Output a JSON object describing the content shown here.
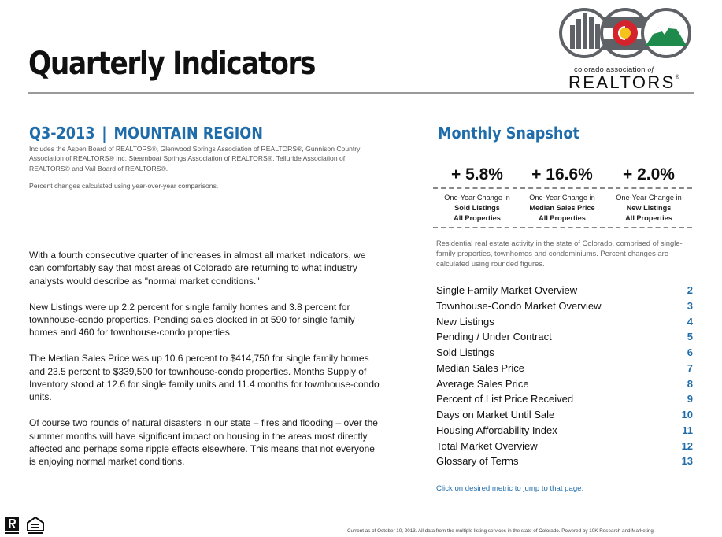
{
  "header": {
    "title": "Quarterly Indicators",
    "logo": {
      "org_text_before": "colorado association ",
      "org_text_of": "of",
      "word": "REALTORS",
      "reg_mark": "®",
      "icon": "colorado-association-of-realtors-logo"
    }
  },
  "left": {
    "region_period": "Q3-2013",
    "region_sep": "|",
    "region_name": "MOUNTAIN REGION",
    "boards_note": "Includes the Aspen Board of REALTORS®, Glenwood Springs Association of REALTORS®, Gunnison Country Association of REALTORS® Inc, Steamboat Springs Association of REALTORS®, Telluride Association of REALTORS® and Vail Board of REALTORS®.",
    "pct_note": "Percent changes calculated using year-over-year comparisons.",
    "paragraphs": [
      "With a fourth consecutive quarter of increases in almost all market indicators, we can comfortably say that most areas of Colorado are returning to what industry analysts would describe as \"normal market conditions.\"",
      "New Listings were up 2.2 percent for single family homes and 3.8 percent for townhouse-condo properties. Pending sales clocked in at 590 for single family homes and 460 for townhouse-condo properties.",
      "The Median Sales Price was up 10.6 percent to $414,750 for single family homes and 23.5 percent to $339,500 for townhouse-condo properties. Months Supply of Inventory stood at 12.6 for single family units and 11.4 months for townhouse-condo units.",
      "Of course two rounds of natural disasters in our state – fires and flooding – over the summer months will have significant impact on housing in the areas most directly affected and perhaps some ripple effects elsewhere. This means that not everyone is enjoying normal market conditions."
    ]
  },
  "snapshot": {
    "title": "Monthly Snapshot",
    "stats": [
      {
        "value": "+ 5.8%",
        "line1": "One-Year Change in",
        "line2": "Sold Listings",
        "line3": "All Properties"
      },
      {
        "value": "+ 16.6%",
        "line1": "One-Year Change in",
        "line2": "Median Sales Price",
        "line3": "All Properties"
      },
      {
        "value": "+ 2.0%",
        "line1": "One-Year Change in",
        "line2": "New Listings",
        "line3": "All Properties"
      }
    ],
    "description": "Residential real estate activity in the state of Colorado, comprised of single-family properties, townhomes and condominiums. Percent changes are calculated using rounded figures.",
    "toc": [
      {
        "label": "Single Family Market Overview",
        "page": "2"
      },
      {
        "label": "Townhouse-Condo Market Overview",
        "page": "3"
      },
      {
        "label": "New Listings",
        "page": "4"
      },
      {
        "label": "Pending / Under Contract",
        "page": "5"
      },
      {
        "label": "Sold Listings",
        "page": "6"
      },
      {
        "label": "Median Sales Price",
        "page": "7"
      },
      {
        "label": "Average Sales Price",
        "page": "8"
      },
      {
        "label": "Percent of List Price Received",
        "page": "9"
      },
      {
        "label": "Days on Market Until Sale",
        "page": "10"
      },
      {
        "label": "Housing Affordability Index",
        "page": "11"
      },
      {
        "label": "Total Market Overview",
        "page": "12"
      },
      {
        "label": "Glossary of Terms",
        "page": "13"
      }
    ],
    "click_note": "Click on desired metric to jump to that page."
  },
  "footer": {
    "note": "Current as of October 10, 2013. All data from the multiple listing services in the state of Colorado. Powered by 10K Research and Marketing.",
    "icons": [
      "realtor-r-icon",
      "equal-housing-icon"
    ]
  },
  "colors": {
    "accent_blue": "#1f6cab",
    "logo_grey": "#5e6166",
    "logo_red": "#d4232c",
    "logo_yellow": "#f6c21c",
    "logo_green": "#1e8b4d"
  }
}
